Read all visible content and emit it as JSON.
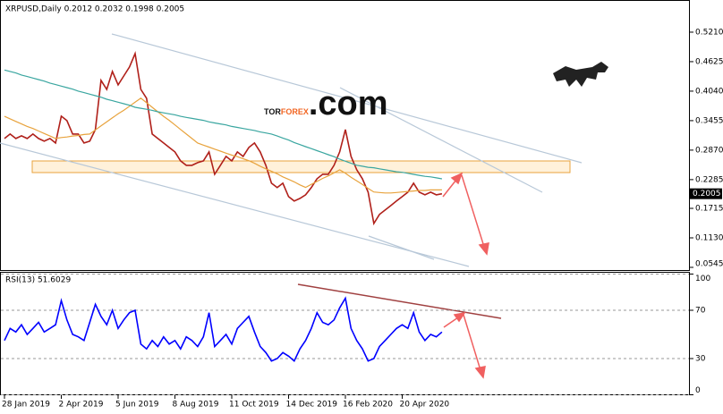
{
  "chart_data": [
    {
      "type": "line",
      "title": "XRPUSD,Daily 0.2012 0.2032 0.1998 0.2005",
      "categories": [
        "28 Jan 2019",
        null,
        null,
        null,
        null,
        null,
        null,
        null,
        null,
        null,
        "2 Apr 2019",
        null,
        null,
        null,
        null,
        null,
        null,
        null,
        null,
        null,
        "5 Jun 2019",
        null,
        null,
        null,
        null,
        null,
        null,
        null,
        null,
        null,
        "8 Aug 2019",
        null,
        null,
        null,
        null,
        null,
        null,
        null,
        null,
        null,
        "11 Oct 2019",
        null,
        null,
        null,
        null,
        null,
        null,
        null,
        null,
        null,
        "14 Dec 2019",
        null,
        null,
        null,
        null,
        null,
        null,
        null,
        null,
        null,
        "16 Feb 2020",
        null,
        null,
        null,
        null,
        null,
        null,
        null,
        null,
        null,
        "20 Apr 2020",
        null,
        null,
        null,
        null,
        null,
        null,
        null
      ],
      "series": [
        {
          "color": "#b0201a",
          "values": [
            0.31,
            0.3189,
            0.31,
            0.3154,
            0.31,
            0.3189,
            0.31,
            0.3047,
            0.31,
            0.3012,
            0.3544,
            0.3455,
            0.3189,
            0.3189,
            0.3012,
            0.3047,
            0.3278,
            0.4253,
            0.4075,
            0.443,
            0.4164,
            0.4341,
            0.4519,
            0.4785,
            0.4075,
            0.3898,
            0.3189,
            0.31,
            0.3012,
            0.2923,
            0.2835,
            0.2657,
            0.2569,
            0.2569,
            0.2622,
            0.2657,
            0.2835,
            0.2391,
            0.2569,
            0.2746,
            0.2657,
            0.2835,
            0.2746,
            0.2923,
            0.3012,
            0.2835,
            0.2569,
            0.2214,
            0.2126,
            0.2214,
            0.1948,
            0.186,
            0.1913,
            0.1984,
            0.2126,
            0.2303,
            0.2391,
            0.2391,
            0.2569,
            0.2835,
            0.3278,
            0.2746,
            0.248,
            0.2303,
            0.2037,
            0.1416,
            0.1594,
            0.1682,
            0.1771,
            0.186,
            0.1948,
            0.2037,
            0.2214,
            0.2037,
            0.1984,
            0.2037,
            0.1984,
            0.2005
          ]
        },
        {
          "color": "#e8a33d",
          "values": [
            0.354,
            0.349,
            0.344,
            0.339,
            0.334,
            0.33,
            0.325,
            0.32,
            0.315,
            0.31,
            0.312,
            0.313,
            0.315,
            0.316,
            0.318,
            0.319,
            0.327,
            0.335,
            0.343,
            0.351,
            0.359,
            0.366,
            0.374,
            0.382,
            0.39,
            0.381,
            0.372,
            0.363,
            0.354,
            0.346,
            0.337,
            0.328,
            0.319,
            0.31,
            0.301,
            0.297,
            0.293,
            0.289,
            0.285,
            0.281,
            0.277,
            0.274,
            0.27,
            0.266,
            0.261,
            0.255,
            0.25,
            0.245,
            0.24,
            0.234,
            0.229,
            0.224,
            0.218,
            0.213,
            0.219,
            0.225,
            0.231,
            0.236,
            0.242,
            0.248,
            0.241,
            0.233,
            0.226,
            0.219,
            0.211,
            0.204,
            0.203,
            0.202,
            0.202,
            0.203,
            0.204,
            0.205,
            0.206,
            0.207,
            0.207,
            0.208,
            0.208,
            0.208
          ]
        },
        {
          "color": "#3aa6a0",
          "values": [
            0.446,
            0.443,
            0.44,
            0.436,
            0.433,
            0.43,
            0.427,
            0.424,
            0.42,
            0.417,
            0.414,
            0.411,
            0.408,
            0.404,
            0.401,
            0.398,
            0.395,
            0.392,
            0.388,
            0.385,
            0.382,
            0.379,
            0.376,
            0.372,
            0.37,
            0.368,
            0.366,
            0.363,
            0.361,
            0.359,
            0.357,
            0.354,
            0.352,
            0.35,
            0.348,
            0.346,
            0.343,
            0.341,
            0.339,
            0.337,
            0.334,
            0.332,
            0.33,
            0.328,
            0.326,
            0.323,
            0.321,
            0.319,
            0.315,
            0.311,
            0.307,
            0.302,
            0.298,
            0.294,
            0.29,
            0.286,
            0.282,
            0.278,
            0.274,
            0.269,
            0.265,
            0.261,
            0.257,
            0.255,
            0.253,
            0.252,
            0.25,
            0.248,
            0.246,
            0.244,
            0.243,
            0.241,
            0.239,
            0.237,
            0.235,
            0.234,
            0.232,
            0.23
          ]
        }
      ],
      "ylim": [
        0.0527,
        0.5777
      ],
      "yticks": [
        {
          "value": 0.521,
          "label": "0.5210"
        },
        0.4625,
        {
          "value": 0.404,
          "label": "0.4040"
        },
        0.3455,
        {
          "value": 0.287,
          "label": "0.2870"
        },
        0.2285,
        0.1715,
        {
          "value": 0.113,
          "label": "0.1130"
        },
        0.0545
      ],
      "current_price": 0.2005,
      "grid": false,
      "watermark": {
        "parts": [
          "TOR",
          "FOREX",
          ".com"
        ]
      }
    },
    {
      "type": "line",
      "title": "RSI(13) 51.6029",
      "series": [
        {
          "color": "#0000ff",
          "values": [
            45,
            55,
            52,
            58,
            50,
            55,
            60,
            52,
            55,
            58,
            78,
            62,
            50,
            48,
            45,
            60,
            75,
            65,
            58,
            70,
            55,
            62,
            68,
            70,
            42,
            38,
            45,
            40,
            48,
            42,
            45,
            38,
            48,
            45,
            40,
            48,
            68,
            40,
            45,
            50,
            42,
            55,
            60,
            65,
            52,
            40,
            35,
            28,
            30,
            35,
            32,
            28,
            38,
            45,
            55,
            68,
            60,
            58,
            62,
            72,
            80,
            55,
            45,
            38,
            28,
            30,
            40,
            45,
            50,
            55,
            58,
            55,
            68,
            52,
            45,
            50,
            48,
            52
          ]
        }
      ],
      "ylim": [
        0,
        100
      ],
      "yticks": [
        100,
        70,
        30,
        0
      ],
      "grid": true
    }
  ]
}
